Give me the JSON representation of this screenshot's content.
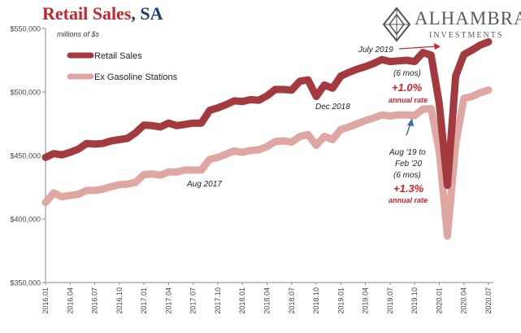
{
  "header": {
    "title_main": "Retail Sales",
    "title_suffix": ", SA",
    "title_color": "#c0282d",
    "suffix_color": "#1f3b78"
  },
  "logo": {
    "name": "ALHAMBRA",
    "sub": "INVESTMENTS"
  },
  "chart_data": {
    "type": "line",
    "units_label": "millions of $s",
    "ylim": [
      350000,
      550000
    ],
    "yticks": [
      "$350,000",
      "$400,000",
      "$450,000",
      "$500,000",
      "$550,000"
    ],
    "ytick_values": [
      350000,
      400000,
      450000,
      500000,
      550000
    ],
    "xticks": [
      "2016.01",
      "2016.04",
      "2016.07",
      "2016.10",
      "2017.01",
      "2017.04",
      "2017.07",
      "2017.10",
      "2018.01",
      "2018.04",
      "2018.07",
      "2018.10",
      "2019.01",
      "2019.04",
      "2019.07",
      "2019.10",
      "2020.01",
      "2020.04",
      "2020.07"
    ],
    "legend_placement": "top-left",
    "series": [
      {
        "name": "Retail Sales",
        "color": "#a33a3f",
        "values": [
          448500,
          451500,
          450500,
          452500,
          455000,
          459500,
          459000,
          459500,
          461500,
          462500,
          463500,
          468000,
          474000,
          473500,
          472500,
          475500,
          473500,
          474500,
          475500,
          475500,
          485500,
          487500,
          490000,
          493000,
          492500,
          494000,
          493500,
          497000,
          502000,
          502000,
          501500,
          508500,
          509500,
          496500,
          505500,
          503000,
          512500,
          515500,
          518000,
          520000,
          522500,
          525500,
          524000,
          524500,
          525000,
          524000,
          531000,
          529000,
          491000,
          426500,
          512500,
          529500,
          533000,
          537000,
          539500
        ]
      },
      {
        "name": "Ex Gasoline Stations",
        "color": "#e0a7a2",
        "values": [
          413000,
          420500,
          417500,
          418500,
          419500,
          422500,
          422500,
          423500,
          425500,
          427000,
          427500,
          429000,
          435000,
          435500,
          434500,
          437000,
          437000,
          438500,
          438500,
          438500,
          447000,
          448500,
          451000,
          453500,
          452500,
          454000,
          454500,
          457000,
          461000,
          461500,
          460500,
          465000,
          466500,
          458000,
          465000,
          462500,
          470500,
          472500,
          475000,
          477500,
          479500,
          482000,
          481000,
          482000,
          482000,
          481500,
          486500,
          487000,
          453500,
          386500,
          459000,
          495000,
          496500,
          499500,
          501500
        ]
      }
    ],
    "annotations": {
      "aug2017": "Aug 2017",
      "dec2018": "Dec 2018",
      "jul2019": "July 2019",
      "six_mos_a": "(6 mos)",
      "pct_a": "+1.0%",
      "annual_a": "annual rate",
      "aug19_line1": "Aug '19 to",
      "aug19_line2": "Feb '20",
      "six_mos_b": "(6 mos)",
      "pct_b": "+1.3%",
      "annual_b": "annual rate"
    },
    "colors": {
      "annotation_red": "#cc2229",
      "arrow_blue": "#3a6ea5",
      "axis_text": "#444444"
    }
  }
}
